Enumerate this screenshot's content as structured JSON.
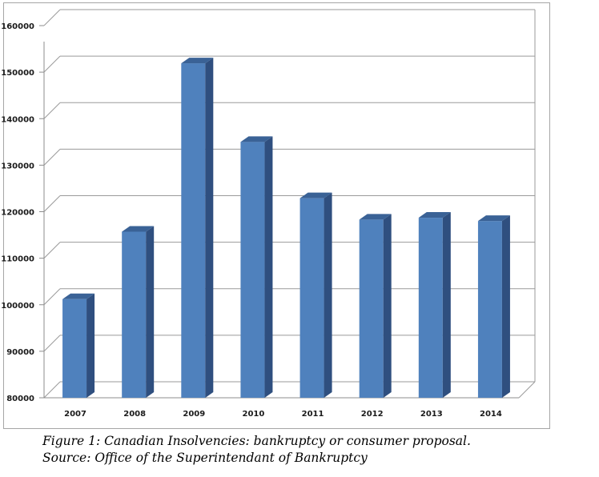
{
  "chart_data": {
    "type": "bar",
    "categories": [
      "2007",
      "2008",
      "2009",
      "2010",
      "2011",
      "2012",
      "2013",
      "2014"
    ],
    "values": [
      101200,
      115700,
      151900,
      135000,
      122900,
      118300,
      118700,
      118000
    ],
    "ylim": [
      80000,
      160000
    ],
    "yticks": [
      80000,
      90000,
      100000,
      110000,
      120000,
      130000,
      140000,
      150000,
      160000
    ],
    "grid": true,
    "legend": "none",
    "bar_color": "#4f81bd",
    "bar_side_color": "#2f4f7f",
    "bar_top_color": "#3a6296"
  },
  "caption": {
    "line1": "Figure 1: Canadian Insolvencies: bankruptcy or consumer proposal.",
    "line2": "Source: Office of the Superintendant of Bankruptcy"
  }
}
